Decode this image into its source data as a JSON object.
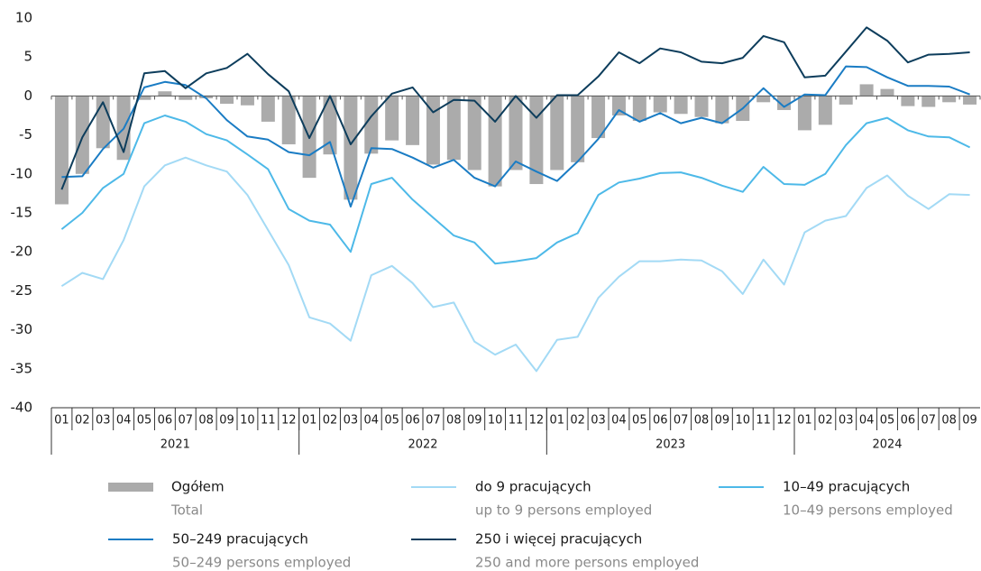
{
  "chart_data": {
    "type": "bar_line",
    "categories": [
      "01",
      "02",
      "03",
      "04",
      "05",
      "06",
      "07",
      "08",
      "09",
      "10",
      "11",
      "12",
      "01",
      "02",
      "03",
      "04",
      "05",
      "06",
      "07",
      "08",
      "09",
      "10",
      "11",
      "12",
      "01",
      "02",
      "03",
      "04",
      "05",
      "06",
      "07",
      "08",
      "09",
      "10",
      "11",
      "12",
      "01",
      "02",
      "03",
      "04",
      "05",
      "06",
      "07",
      "08",
      "09"
    ],
    "years": [
      "2021",
      "2022",
      "2023",
      "2024"
    ],
    "year_lengths": [
      12,
      12,
      12,
      9
    ],
    "ylim": [
      -40,
      10
    ],
    "yticks": [
      10,
      5,
      0,
      -5,
      -10,
      -15,
      -20,
      -25,
      -30,
      -35,
      -40
    ],
    "series": [
      {
        "name": "Ogółem",
        "name_en": "Total",
        "kind": "bar",
        "color": "#ababab",
        "values": [
          -13.9,
          -10,
          -6.7,
          -8.2,
          -0.5,
          0.6,
          -0.5,
          -0.3,
          -1,
          -1.2,
          -3.3,
          -6.2,
          -10.5,
          -7.5,
          -13.3,
          -7.4,
          -5.7,
          -6.3,
          -8.8,
          -8.2,
          -9.5,
          -11.6,
          -9.5,
          -11.3,
          -9.5,
          -8.5,
          -5.4,
          -2.5,
          -3.2,
          -2.1,
          -2.3,
          -2.7,
          -3.5,
          -3.2,
          -0.8,
          -1.8,
          -4.4,
          -3.7,
          -1.1,
          1.5,
          0.9,
          -1.3,
          -1.4,
          -0.8,
          -1.1
        ]
      },
      {
        "name": "do 9 pracujących",
        "name_en": "up to 9 persons employed",
        "kind": "line",
        "color": "#a3daf5",
        "values": [
          -24.4,
          -22.7,
          -23.5,
          -18.5,
          -11.6,
          -8.9,
          -7.9,
          -8.9,
          -9.7,
          -12.7,
          -17.2,
          -21.7,
          -28.4,
          -29.2,
          -31.4,
          -23,
          -21.8,
          -24,
          -27.1,
          -26.5,
          -31.5,
          -33.2,
          -31.9,
          -35.3,
          -31.3,
          -30.9,
          -25.9,
          -23.2,
          -21.2,
          -21.2,
          -21,
          -21.1,
          -22.5,
          -25.4,
          -21,
          -24.2,
          -17.5,
          -16,
          -15.4,
          -11.8,
          -10.2,
          -12.8,
          -14.5,
          -12.6,
          -12.7
        ]
      },
      {
        "name": "10–49 pracujących",
        "name_en": "10–49 persons employed",
        "kind": "line",
        "color": "#4db9e8",
        "values": [
          -17.1,
          -15,
          -11.8,
          -10,
          -3.5,
          -2.5,
          -3.3,
          -4.9,
          -5.7,
          -7.5,
          -9.4,
          -14.5,
          -16,
          -16.5,
          -20,
          -11.3,
          -10.5,
          -13.3,
          -15.6,
          -17.9,
          -18.8,
          -21.5,
          -21.2,
          -20.8,
          -18.8,
          -17.6,
          -12.7,
          -11.1,
          -10.6,
          -9.9,
          -9.8,
          -10.5,
          -11.5,
          -12.3,
          -9.1,
          -11.3,
          -11.4,
          -10,
          -6.3,
          -3.5,
          -2.8,
          -4.4,
          -5.2,
          -5.3,
          -6.6
        ]
      },
      {
        "name": "50–249 pracujących",
        "name_en": "50–249 persons employed",
        "kind": "line",
        "color": "#1a7cc4",
        "values": [
          -10.4,
          -10.3,
          -6.8,
          -4.2,
          1.1,
          1.8,
          1.4,
          -0.3,
          -3.1,
          -5.2,
          -5.6,
          -7.2,
          -7.6,
          -5.9,
          -14.2,
          -6.7,
          -6.8,
          -7.9,
          -9.2,
          -8.2,
          -10.5,
          -11.6,
          -8.4,
          -9.7,
          -10.9,
          -8.4,
          -5.5,
          -1.8,
          -3.3,
          -2.2,
          -3.5,
          -2.8,
          -3.5,
          -1.6,
          1,
          -1.4,
          0.2,
          0.1,
          3.8,
          3.7,
          2.4,
          1.3,
          1.3,
          1.2,
          0.2
        ]
      },
      {
        "name": "250 i więcej pracujących",
        "name_en": "250 and more persons employed",
        "kind": "line",
        "color": "#0d3d5c",
        "values": [
          -12,
          -5.3,
          -0.8,
          -7.2,
          2.9,
          3.2,
          1,
          2.9,
          3.6,
          5.4,
          2.8,
          0.6,
          -5.4,
          0,
          -6.2,
          -2.6,
          0.3,
          1.1,
          -2.1,
          -0.5,
          -0.6,
          -3.3,
          0,
          -2.8,
          0.1,
          0.1,
          2.5,
          5.6,
          4.2,
          6.1,
          5.6,
          4.4,
          4.2,
          4.9,
          7.7,
          6.9,
          2.4,
          2.6,
          5.7,
          8.8,
          7.1,
          4.3,
          5.3,
          5.4,
          5.6
        ]
      }
    ]
  }
}
